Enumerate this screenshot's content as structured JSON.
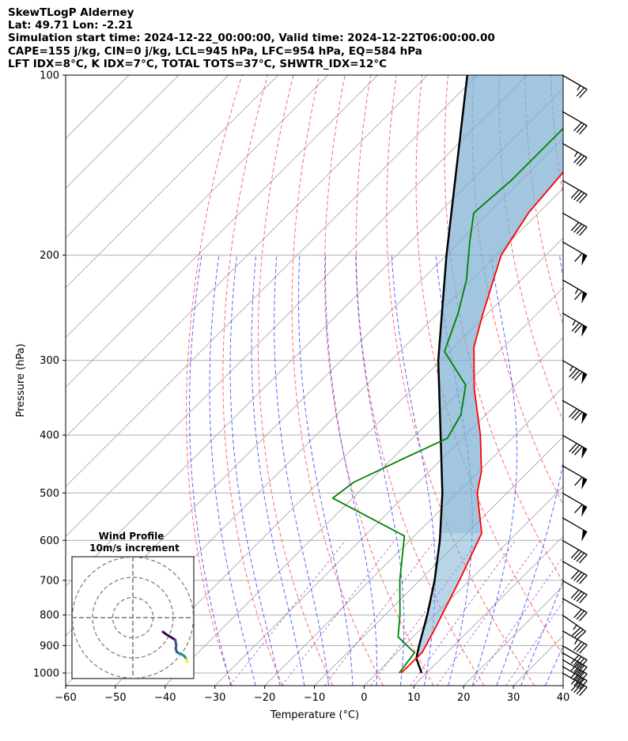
{
  "header": {
    "title": "SkewTLogP Alderney",
    "location": "Lat: 49.71   Lon: -2.21",
    "times": "Simulation start time: 2024-12-22_00:00:00, Valid time: 2024-12-22T06:00:00.00",
    "params": "CAPE=155 j/kg, CIN=0 j/kg, LCL=945 hPa, LFC=954 hPa, EQ=584 hPa",
    "indices": "LFT IDX=8°C, K IDX=7°C, TOTAL TOTS=37°C, SHWTR_IDX=12°C"
  },
  "chart_data": {
    "type": "skew-t",
    "xlabel": "Temperature (°C)",
    "ylabel": "Pressure (hPa)",
    "xlim": [
      -60,
      40
    ],
    "ylim": [
      1050,
      100
    ],
    "y_scale": "log",
    "xticks": [
      -60,
      -50,
      -40,
      -30,
      -20,
      -10,
      0,
      10,
      20,
      30,
      40
    ],
    "xtick_labels": [
      "−60",
      "−50",
      "−40",
      "−30",
      "−20",
      "−10",
      "0",
      "10",
      "20",
      "30",
      "40"
    ],
    "yticks": [
      1000,
      900,
      800,
      700,
      600,
      500,
      400,
      300,
      200,
      100
    ],
    "grid": true,
    "temperature": {
      "color": "#ff0000",
      "points": [
        [
          1000,
          4.9
        ],
        [
          925,
          5.0
        ],
        [
          850,
          3.0
        ],
        [
          700,
          -2.0
        ],
        [
          584,
          -7.0
        ],
        [
          500,
          -16.0
        ],
        [
          460,
          -19.5
        ],
        [
          400,
          -27.0
        ],
        [
          335,
          -37.5
        ],
        [
          285,
          -46.0
        ],
        [
          250,
          -51.0
        ],
        [
          200,
          -59.0
        ],
        [
          170,
          -62.0
        ],
        [
          140,
          -63.5
        ],
        [
          115,
          -66.0
        ],
        [
          100,
          -68.5
        ]
      ]
    },
    "dewpoint": {
      "color": "#008000",
      "points": [
        [
          1000,
          4.5
        ],
        [
          925,
          3.5
        ],
        [
          870,
          -3.0
        ],
        [
          800,
          -7.0
        ],
        [
          700,
          -14.0
        ],
        [
          590,
          -22.0
        ],
        [
          510,
          -44.0
        ],
        [
          480,
          -43.0
        ],
        [
          440,
          -38.0
        ],
        [
          405,
          -33.0
        ],
        [
          370,
          -35.0
        ],
        [
          330,
          -40.0
        ],
        [
          290,
          -51.0
        ],
        [
          250,
          -56.0
        ],
        [
          220,
          -61.0
        ],
        [
          190,
          -68.0
        ],
        [
          170,
          -73.0
        ],
        [
          150,
          -72.0
        ],
        [
          100,
          -72.0
        ]
      ]
    },
    "parcel": {
      "color": "#000000",
      "points": [
        [
          1000,
          9.0
        ],
        [
          945,
          5.0
        ],
        [
          900,
          3.0
        ],
        [
          800,
          -1.5
        ],
        [
          700,
          -7.0
        ],
        [
          600,
          -14.0
        ],
        [
          500,
          -23.0
        ],
        [
          400,
          -35.0
        ],
        [
          300,
          -50.5
        ],
        [
          200,
          -70.0
        ],
        [
          100,
          -102.0
        ]
      ]
    },
    "shading": {
      "cape_color": "#7fb3d5",
      "cin_color": "#f08080"
    },
    "wind_barbs": [
      {
        "p": 1000,
        "speed_kt": 40,
        "dir": 300
      },
      {
        "p": 975,
        "speed_kt": 40,
        "dir": 300
      },
      {
        "p": 950,
        "speed_kt": 40,
        "dir": 300
      },
      {
        "p": 925,
        "speed_kt": 40,
        "dir": 300
      },
      {
        "p": 900,
        "speed_kt": 40,
        "dir": 300
      },
      {
        "p": 850,
        "speed_kt": 35,
        "dir": 300
      },
      {
        "p": 800,
        "speed_kt": 35,
        "dir": 305
      },
      {
        "p": 750,
        "speed_kt": 30,
        "dir": 300
      },
      {
        "p": 700,
        "speed_kt": 40,
        "dir": 300
      },
      {
        "p": 650,
        "speed_kt": 40,
        "dir": 300
      },
      {
        "p": 600,
        "speed_kt": 40,
        "dir": 300
      },
      {
        "p": 550,
        "speed_kt": 50,
        "dir": 300
      },
      {
        "p": 500,
        "speed_kt": 60,
        "dir": 300
      },
      {
        "p": 450,
        "speed_kt": 60,
        "dir": 300
      },
      {
        "p": 400,
        "speed_kt": 80,
        "dir": 300
      },
      {
        "p": 350,
        "speed_kt": 80,
        "dir": 300
      },
      {
        "p": 300,
        "speed_kt": 85,
        "dir": 300
      },
      {
        "p": 250,
        "speed_kt": 75,
        "dir": 300
      },
      {
        "p": 220,
        "speed_kt": 65,
        "dir": 300
      },
      {
        "p": 190,
        "speed_kt": 60,
        "dir": 300
      },
      {
        "p": 170,
        "speed_kt": 40,
        "dir": 300
      },
      {
        "p": 150,
        "speed_kt": 40,
        "dir": 300
      },
      {
        "p": 130,
        "speed_kt": 35,
        "dir": 300
      },
      {
        "p": 115,
        "speed_kt": 30,
        "dir": 300
      },
      {
        "p": 100,
        "speed_kt": 25,
        "dir": 300
      }
    ],
    "hodograph": {
      "title": "Wind Profile",
      "subtitle": "10m/s increment",
      "rings_ms": [
        10,
        20,
        30
      ],
      "trace": [
        [
          0.0,
          0.0
        ],
        [
          0.4,
          -0.3
        ],
        [
          0.8,
          -0.6
        ],
        [
          1.5,
          -1.0
        ],
        [
          2.6,
          -1.7
        ],
        [
          2.8,
          -2.8
        ],
        [
          2.7,
          -3.5
        ],
        [
          2.9,
          -4.2
        ],
        [
          3.3,
          -4.5
        ],
        [
          3.8,
          -4.6
        ],
        [
          4.5,
          -5.1
        ],
        [
          5.0,
          -5.8
        ],
        [
          5.1,
          -6.4
        ]
      ]
    }
  }
}
